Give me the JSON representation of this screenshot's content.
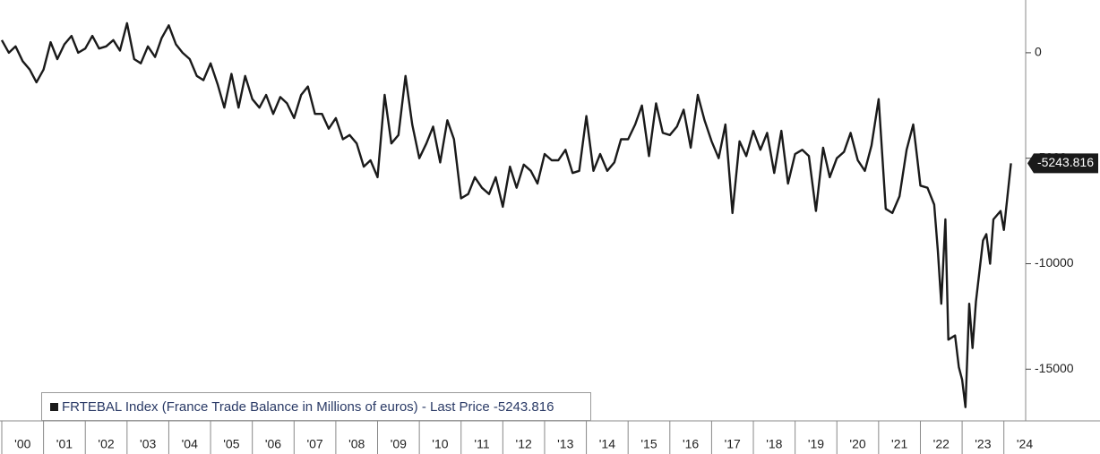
{
  "chart_data": {
    "type": "line",
    "series": [
      {
        "name": "FRTEBAL Index (France Trade Balance in Millions of euros) - Last Price -5243.816",
        "color": "#1a1a1a",
        "x": [
          2000.0,
          2000.17,
          2000.33,
          2000.5,
          2000.67,
          2000.83,
          2001.0,
          2001.17,
          2001.33,
          2001.5,
          2001.67,
          2001.83,
          2002.0,
          2002.17,
          2002.33,
          2002.5,
          2002.67,
          2002.83,
          2003.0,
          2003.17,
          2003.33,
          2003.5,
          2003.67,
          2003.83,
          2004.0,
          2004.17,
          2004.33,
          2004.5,
          2004.67,
          2004.83,
          2005.0,
          2005.17,
          2005.33,
          2005.5,
          2005.67,
          2005.83,
          2006.0,
          2006.17,
          2006.33,
          2006.5,
          2006.67,
          2006.83,
          2007.0,
          2007.17,
          2007.33,
          2007.5,
          2007.67,
          2007.83,
          2008.0,
          2008.17,
          2008.33,
          2008.5,
          2008.67,
          2008.83,
          2009.0,
          2009.17,
          2009.33,
          2009.5,
          2009.67,
          2009.83,
          2010.0,
          2010.17,
          2010.33,
          2010.5,
          2010.67,
          2010.83,
          2011.0,
          2011.17,
          2011.33,
          2011.5,
          2011.67,
          2011.83,
          2012.0,
          2012.17,
          2012.33,
          2012.5,
          2012.67,
          2012.83,
          2013.0,
          2013.17,
          2013.33,
          2013.5,
          2013.67,
          2013.83,
          2014.0,
          2014.17,
          2014.33,
          2014.5,
          2014.67,
          2014.83,
          2015.0,
          2015.17,
          2015.33,
          2015.5,
          2015.67,
          2015.83,
          2016.0,
          2016.17,
          2016.33,
          2016.5,
          2016.67,
          2016.83,
          2017.0,
          2017.17,
          2017.33,
          2017.5,
          2017.67,
          2017.83,
          2018.0,
          2018.17,
          2018.33,
          2018.5,
          2018.67,
          2018.83,
          2019.0,
          2019.17,
          2019.33,
          2019.5,
          2019.67,
          2019.83,
          2020.0,
          2020.17,
          2020.33,
          2020.5,
          2020.67,
          2020.83,
          2021.0,
          2021.17,
          2021.33,
          2021.5,
          2021.67,
          2021.83,
          2021.92,
          2022.0,
          2022.17,
          2022.33,
          2022.42,
          2022.5,
          2022.6,
          2022.67,
          2022.83,
          2022.92,
          2023.0,
          2023.08,
          2023.17,
          2023.25,
          2023.33,
          2023.5,
          2023.58,
          2023.67,
          2023.75,
          2023.92,
          2024.0,
          2024.17
        ],
        "values": [
          600,
          0,
          300,
          -400,
          -800,
          -1400,
          -800,
          500,
          -300,
          400,
          800,
          0,
          200,
          800,
          200,
          300,
          600,
          100,
          1400,
          -300,
          -500,
          300,
          -200,
          700,
          1300,
          400,
          0,
          -300,
          -1100,
          -1300,
          -500,
          -1500,
          -2600,
          -1000,
          -2600,
          -1100,
          -2200,
          -2600,
          -2000,
          -2900,
          -2100,
          -2400,
          -3100,
          -2000,
          -1600,
          -2900,
          -2900,
          -3600,
          -3100,
          -4100,
          -3900,
          -4300,
          -5400,
          -5100,
          -5900,
          -2000,
          -4300,
          -3900,
          -1100,
          -3400,
          -5000,
          -4300,
          -3500,
          -5200,
          -3200,
          -4100,
          -6900,
          -6700,
          -5900,
          -6400,
          -6700,
          -5900,
          -7300,
          -5400,
          -6400,
          -5300,
          -5600,
          -6200,
          -4800,
          -5100,
          -5100,
          -4600,
          -5700,
          -5600,
          -3000,
          -5600,
          -4800,
          -5600,
          -5200,
          -4100,
          -4100,
          -3400,
          -2500,
          -4900,
          -2400,
          -3800,
          -3900,
          -3500,
          -2700,
          -4500,
          -2000,
          -3200,
          -4200,
          -5000,
          -3400,
          -7600,
          -4200,
          -4900,
          -3700,
          -4600,
          -3800,
          -5700,
          -3700,
          -6200,
          -4800,
          -4600,
          -4900,
          -7500,
          -4500,
          -5900,
          -5000,
          -4700,
          -3800,
          -5100,
          -5600,
          -4400,
          -2200,
          -7400,
          -7600,
          -6800,
          -4600,
          -3400,
          -4900,
          -6300,
          -6400,
          -7200,
          -9400,
          -11900,
          -7900,
          -13600,
          -13400,
          -14900,
          -15500,
          -16800,
          -11900,
          -14000,
          -11800,
          -8900,
          -8600,
          -10000,
          -7900,
          -7500,
          -8400,
          -5243.816
        ]
      }
    ],
    "xlim": [
      2000,
      2024.5
    ],
    "xticks": [
      {
        "value": 2000,
        "label": "'00"
      },
      {
        "value": 2001,
        "label": "'01"
      },
      {
        "value": 2002,
        "label": "'02"
      },
      {
        "value": 2003,
        "label": "'03"
      },
      {
        "value": 2004,
        "label": "'04"
      },
      {
        "value": 2005,
        "label": "'05"
      },
      {
        "value": 2006,
        "label": "'06"
      },
      {
        "value": 2007,
        "label": "'07"
      },
      {
        "value": 2008,
        "label": "'08"
      },
      {
        "value": 2009,
        "label": "'09"
      },
      {
        "value": 2010,
        "label": "'10"
      },
      {
        "value": 2011,
        "label": "'11"
      },
      {
        "value": 2012,
        "label": "'12"
      },
      {
        "value": 2013,
        "label": "'13"
      },
      {
        "value": 2014,
        "label": "'14"
      },
      {
        "value": 2015,
        "label": "'15"
      },
      {
        "value": 2016,
        "label": "'16"
      },
      {
        "value": 2017,
        "label": "'17"
      },
      {
        "value": 2018,
        "label": "'18"
      },
      {
        "value": 2019,
        "label": "'19"
      },
      {
        "value": 2020,
        "label": "'20"
      },
      {
        "value": 2021,
        "label": "'21"
      },
      {
        "value": 2022,
        "label": "'22"
      },
      {
        "value": 2023,
        "label": "'23"
      },
      {
        "value": 2024,
        "label": "'24"
      }
    ],
    "ylim": [
      -17450,
      2500
    ],
    "yticks": [
      0,
      -5000,
      -10000,
      -15000
    ]
  }
}
